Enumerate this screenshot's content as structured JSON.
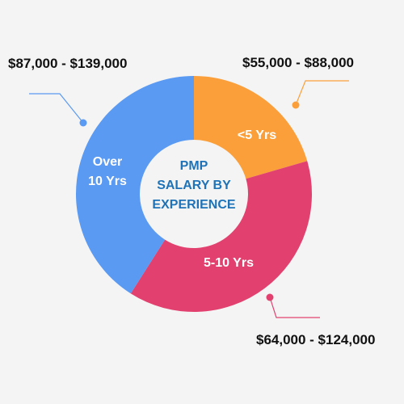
{
  "chart_data": {
    "type": "pie",
    "variant": "donut",
    "title_lines": [
      "PMP",
      "SALARY BY",
      "EXPERIENCE"
    ],
    "categories": [
      "<5 Yrs",
      "5-10 Yrs",
      "Over 10 Yrs"
    ],
    "category_lines": [
      [
        "<5 Yrs"
      ],
      [
        "5-10 Yrs"
      ],
      [
        "Over",
        "10 Yrs"
      ]
    ],
    "values": [
      20.5,
      38.5,
      41.0
    ],
    "value_unit": "percent of circle",
    "salary_ranges": [
      "$55,000 - $88,000",
      "$64,000 - $124,000",
      "$87,000 - $139,000"
    ],
    "colors": [
      "#fb9f3a",
      "#e2416f",
      "#5a9af2"
    ],
    "title_color": "#1e73b8",
    "background": "#f4f4f4"
  }
}
